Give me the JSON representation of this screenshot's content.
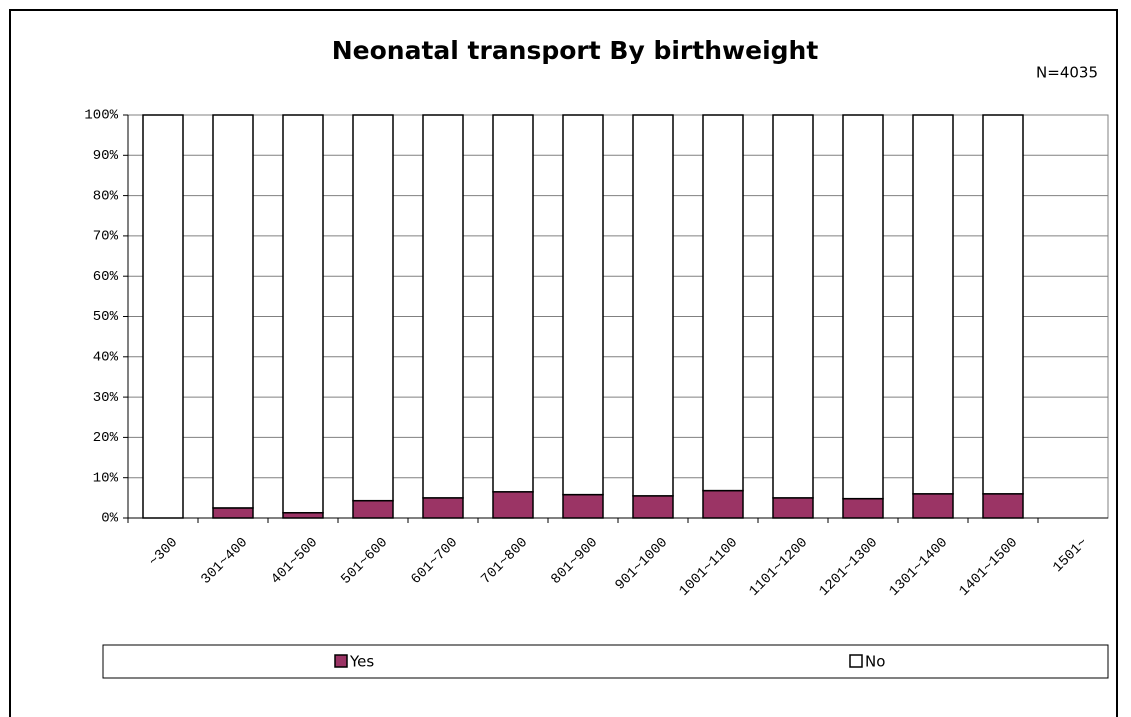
{
  "chart_data": {
    "type": "stacked_bar",
    "title": "Neonatal transport By birthweight",
    "subtitle": "N=4035",
    "categories": [
      "~300",
      "301~400",
      "401~500",
      "501~600",
      "601~700",
      "701~800",
      "801~900",
      "901~1000",
      "1001~1100",
      "1101~1200",
      "1201~1300",
      "1301~1400",
      "1401~1500",
      "1501~"
    ],
    "series": [
      {
        "name": "Yes",
        "color": "#9b3465",
        "values": [
          0,
          2.5,
          1.3,
          4.3,
          5.0,
          6.5,
          5.8,
          5.5,
          6.8,
          5.0,
          4.8,
          6.0,
          6.0,
          null
        ]
      },
      {
        "name": "No",
        "color": "#ffffff",
        "values": [
          100,
          97.5,
          98.7,
          95.7,
          95.0,
          93.5,
          94.2,
          94.5,
          93.2,
          95.0,
          95.2,
          94.0,
          94.0,
          null
        ]
      }
    ],
    "ylim": [
      0,
      100
    ],
    "yticks": [
      {
        "value": 0,
        "label": "0%"
      },
      {
        "value": 10,
        "label": "10%"
      },
      {
        "value": 20,
        "label": "20%"
      },
      {
        "value": 30,
        "label": "30%"
      },
      {
        "value": 40,
        "label": "40%"
      },
      {
        "value": 50,
        "label": "50%"
      },
      {
        "value": 60,
        "label": "60%"
      },
      {
        "value": 70,
        "label": "70%"
      },
      {
        "value": 80,
        "label": "80%"
      },
      {
        "value": 90,
        "label": "90%"
      },
      {
        "value": 100,
        "label": "100%"
      }
    ],
    "grid": true,
    "legend": "bottom"
  }
}
